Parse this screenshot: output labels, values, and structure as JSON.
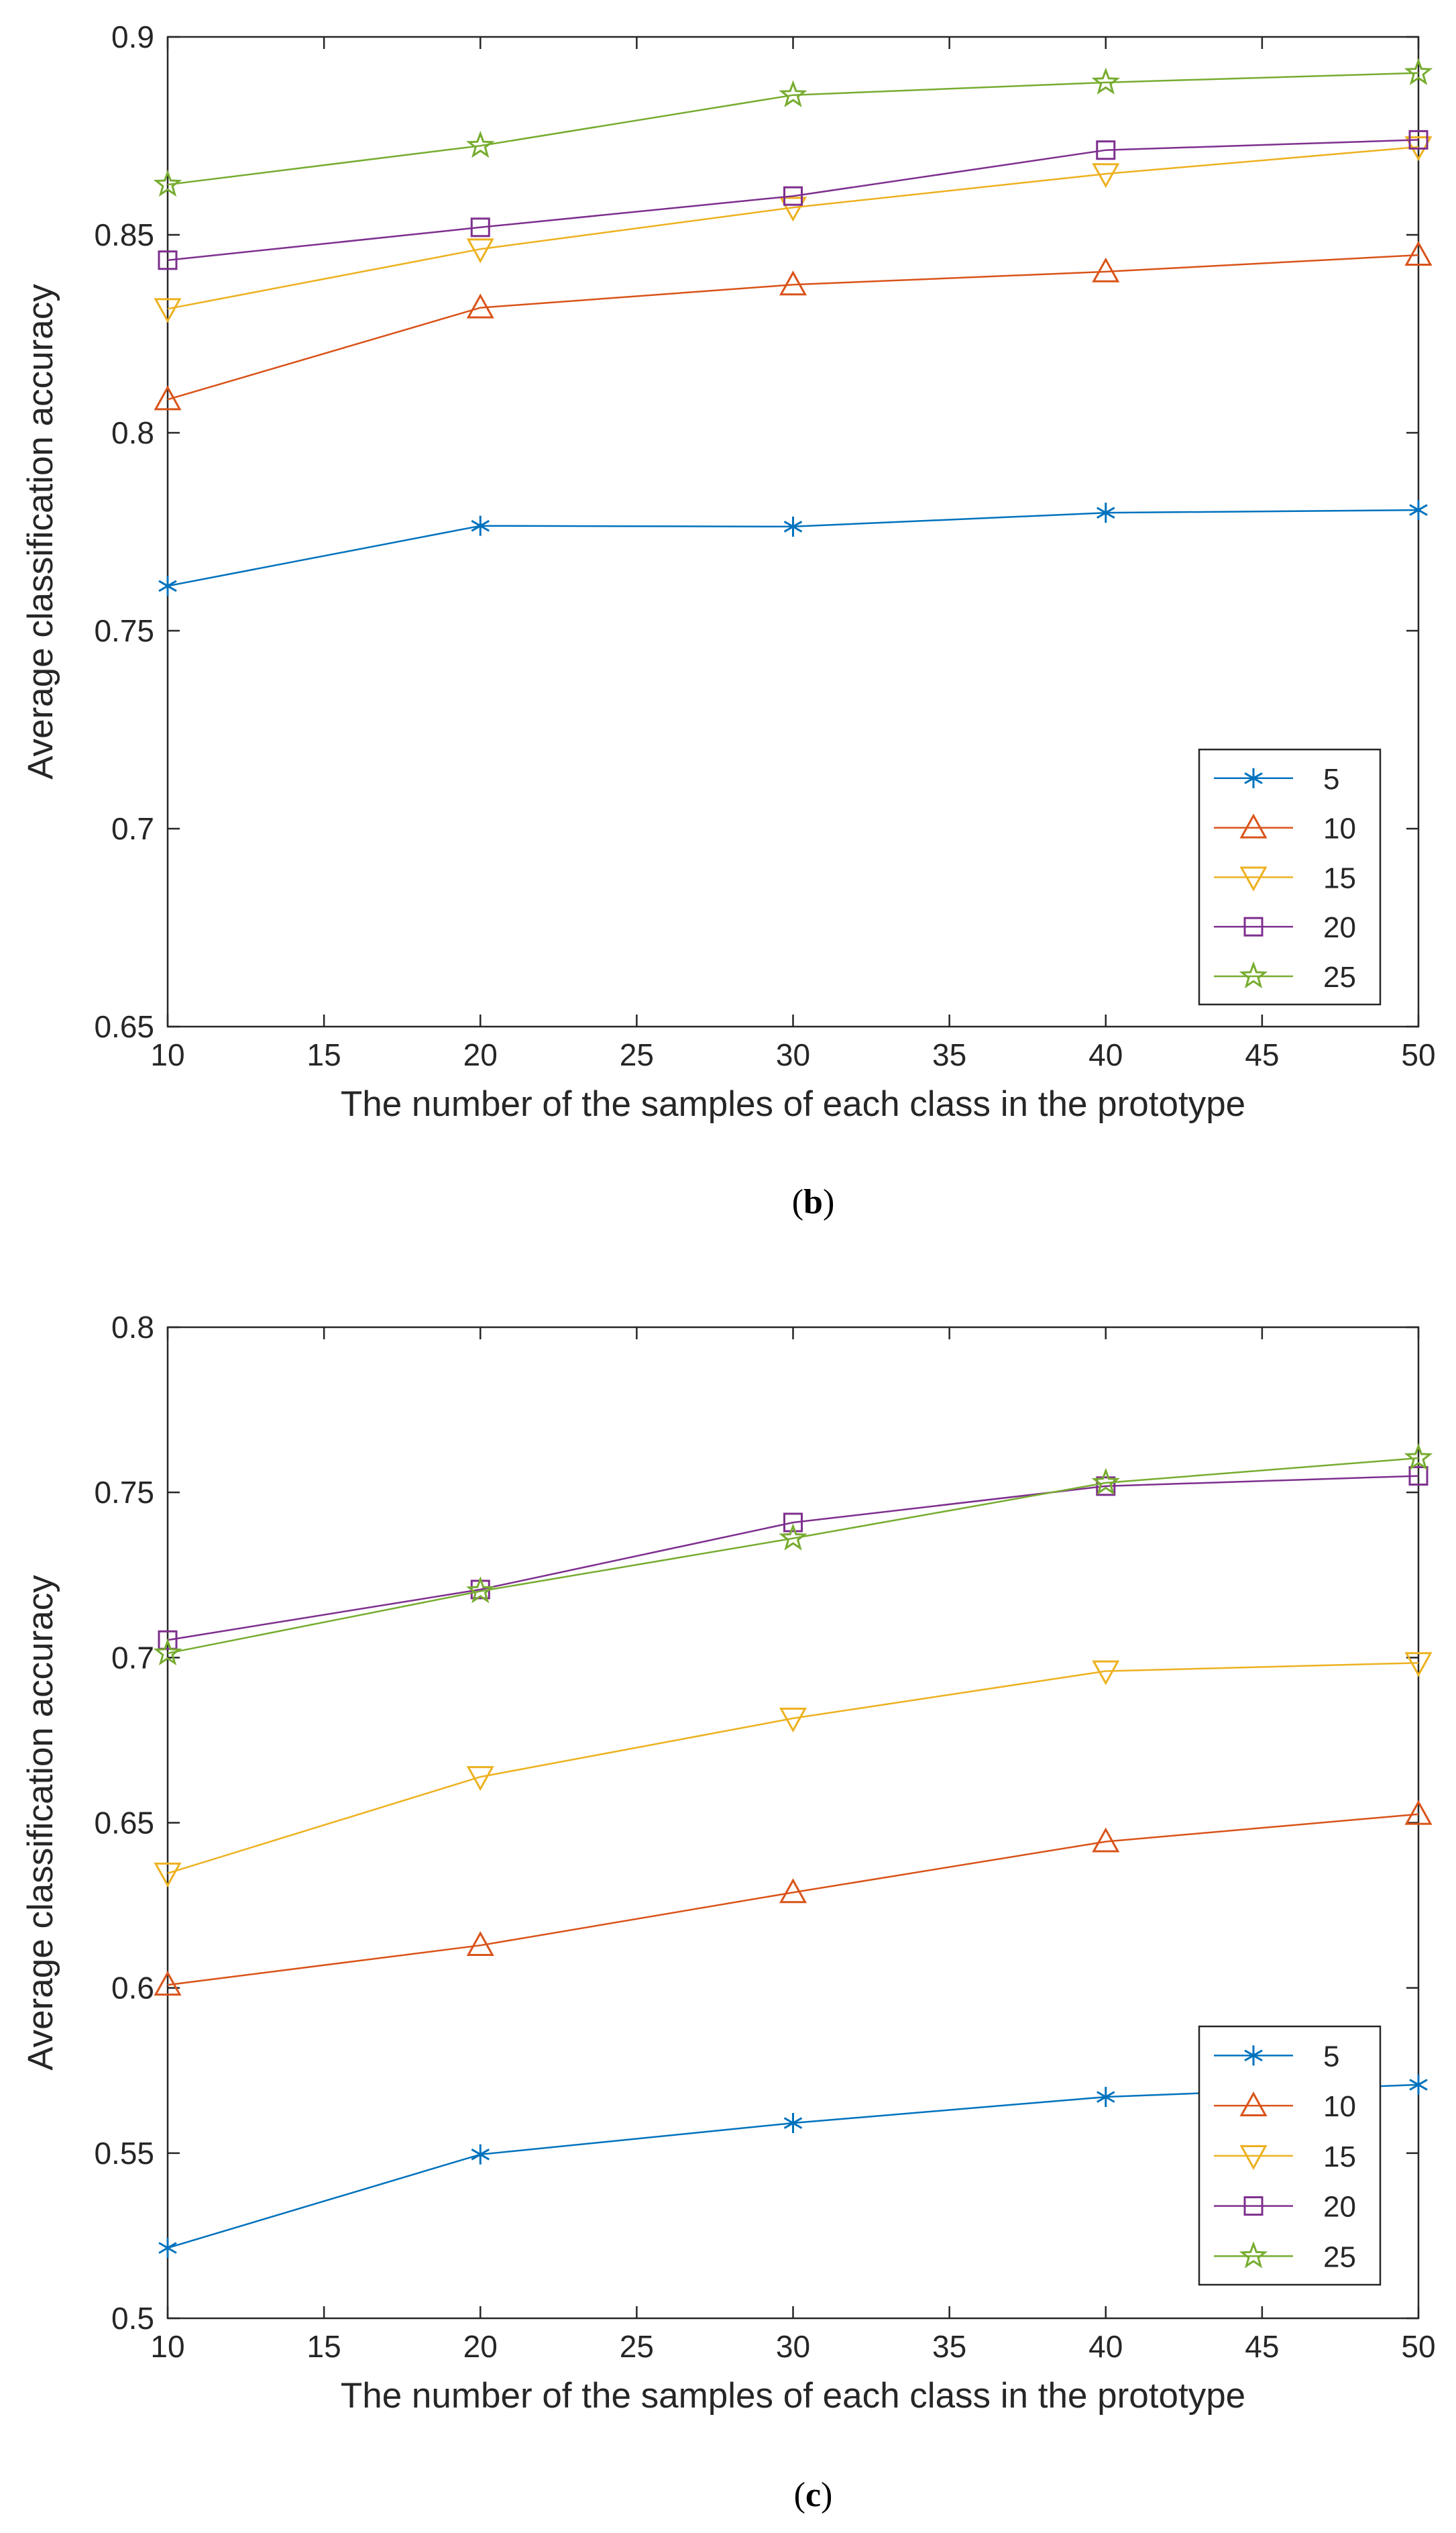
{
  "chart_data": [
    {
      "type": "line",
      "panel_label": "b",
      "xlabel": "The number of the samples of each class in the prototype",
      "ylabel": "Average classification accuracy",
      "xlim": [
        10,
        50
      ],
      "ylim": [
        0.65,
        0.9
      ],
      "xticks": [
        10,
        15,
        20,
        25,
        30,
        35,
        40,
        45,
        50
      ],
      "xtick_labels": [
        "10",
        "15",
        "20",
        "25",
        "30",
        "35",
        "40",
        "45",
        "50"
      ],
      "yticks": [
        0.65,
        0.7,
        0.75,
        0.8,
        0.85,
        0.9
      ],
      "ytick_labels": [
        "0.65",
        "0.7",
        "0.75",
        "0.8",
        "0.85",
        "0.9"
      ],
      "grid": false,
      "legend_position": "bottom-right",
      "x": [
        10,
        20,
        30,
        40,
        50
      ],
      "series": [
        {
          "name": "5",
          "color": "#0072BD",
          "marker": "asterisk",
          "values": [
            0.7613,
            0.7765,
            0.7763,
            0.7798,
            0.7805
          ]
        },
        {
          "name": "10",
          "color": "#D95319",
          "marker": "triangle-up",
          "values": [
            0.8084,
            0.8316,
            0.8374,
            0.8407,
            0.8449
          ]
        },
        {
          "name": "15",
          "color": "#EDB120",
          "marker": "triangle-down",
          "values": [
            0.8313,
            0.8464,
            0.8569,
            0.8654,
            0.8722
          ]
        },
        {
          "name": "20",
          "color": "#7E2F8E",
          "marker": "square",
          "values": [
            0.8436,
            0.8519,
            0.8598,
            0.8714,
            0.874
          ]
        },
        {
          "name": "25",
          "color": "#77AC30",
          "marker": "star",
          "values": [
            0.8627,
            0.8725,
            0.8853,
            0.8885,
            0.8909
          ]
        }
      ]
    },
    {
      "type": "line",
      "panel_label": "c",
      "xlabel": "The number of the samples of each class in the prototype",
      "ylabel": "Average classification accuracy",
      "xlim": [
        10,
        50
      ],
      "ylim": [
        0.5,
        0.8
      ],
      "xticks": [
        10,
        15,
        20,
        25,
        30,
        35,
        40,
        45,
        50
      ],
      "xtick_labels": [
        "10",
        "15",
        "20",
        "25",
        "30",
        "35",
        "40",
        "45",
        "50"
      ],
      "yticks": [
        0.5,
        0.55,
        0.6,
        0.65,
        0.7,
        0.75,
        0.8
      ],
      "ytick_labels": [
        "0.5",
        "0.55",
        "0.6",
        "0.65",
        "0.7",
        "0.75",
        "0.8"
      ],
      "grid": false,
      "legend_position": "bottom-right",
      "x": [
        10,
        20,
        30,
        40,
        50
      ],
      "series": [
        {
          "name": "5",
          "color": "#0072BD",
          "marker": "asterisk",
          "values": [
            0.5213,
            0.5496,
            0.5591,
            0.567,
            0.5707
          ]
        },
        {
          "name": "10",
          "color": "#D95319",
          "marker": "triangle-up",
          "values": [
            0.6009,
            0.6129,
            0.6289,
            0.6443,
            0.6526
          ]
        },
        {
          "name": "15",
          "color": "#EDB120",
          "marker": "triangle-down",
          "values": [
            0.6347,
            0.6639,
            0.6816,
            0.6959,
            0.6984
          ]
        },
        {
          "name": "20",
          "color": "#7E2F8E",
          "marker": "square",
          "values": [
            0.7053,
            0.7206,
            0.7409,
            0.7519,
            0.755
          ]
        },
        {
          "name": "25",
          "color": "#77AC30",
          "marker": "star",
          "values": [
            0.7013,
            0.7201,
            0.7361,
            0.7529,
            0.7604
          ]
        }
      ]
    }
  ]
}
